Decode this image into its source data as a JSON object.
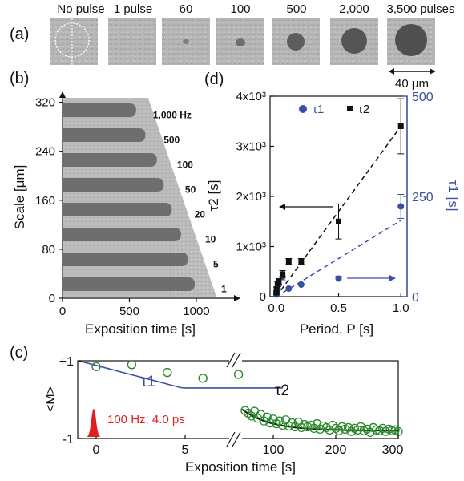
{
  "panels": {
    "a": {
      "label": "(a)",
      "pulse_labels": [
        "No pulse",
        "1 pulse",
        "60",
        "100",
        "500",
        "2,000",
        "3,500 pulses"
      ],
      "scalebar": "40 μm"
    },
    "b": {
      "label": "(b)"
    },
    "c": {
      "label": "(c)"
    },
    "d": {
      "label": "(d)"
    }
  },
  "colors": {
    "black": "#111111",
    "blue": "#3a4fa3",
    "green": "#2a8a2a",
    "red": "#e0201c",
    "bar_dark": "#6e6e6e",
    "bar_bg": "#b9b9b9"
  },
  "chart_data": [
    {
      "panel": "b",
      "type": "bar",
      "orientation": "horizontal",
      "xlabel": "Exposition time [s]",
      "ylabel": "Scale [μm]",
      "xlim": [
        0,
        1150
      ],
      "ylim": [
        0,
        330
      ],
      "x_ticks": [
        "0",
        "500",
        "1000"
      ],
      "y_ticks": [
        "0",
        "80",
        "160",
        "240",
        "320"
      ],
      "categories": [
        "1,000 Hz",
        "500",
        "100",
        "50",
        "20",
        "10",
        "5",
        "1"
      ],
      "values": [
        640,
        720,
        820,
        880,
        950,
        1030,
        1090,
        1150
      ]
    },
    {
      "panel": "d",
      "type": "scatter",
      "xlabel": "Period, P [s]",
      "ylabel_left": "τ2 [s]",
      "ylabel_right": "τ1 [s]",
      "xlim": [
        -0.05,
        1.05
      ],
      "ylim_left": [
        0,
        4000
      ],
      "ylim_right": [
        0,
        500
      ],
      "x_ticks": [
        "0.0",
        "0.5",
        "1.0"
      ],
      "y_ticks_left": [
        "0",
        "1x10³",
        "2x10³",
        "3x10³",
        "4x10³"
      ],
      "y_ticks_right": [
        "0",
        "250",
        "500"
      ],
      "legend": [
        "τ1",
        "τ2"
      ],
      "series": [
        {
          "name": "τ2",
          "axis": "left",
          "x": [
            0.001,
            0.002,
            0.01,
            0.02,
            0.05,
            0.1,
            0.2,
            0.5,
            1.0
          ],
          "y": [
            80,
            150,
            250,
            300,
            450,
            700,
            700,
            1500,
            3400
          ],
          "yerr": [
            30,
            40,
            50,
            60,
            70,
            60,
            60,
            350,
            550
          ]
        },
        {
          "name": "τ1",
          "axis": "right",
          "x": [
            0.001,
            0.002,
            0.01,
            0.02,
            0.05,
            0.1,
            0.2,
            0.5,
            1.0
          ],
          "y": [
            5,
            10,
            20,
            30,
            50,
            20,
            30,
            45,
            225
          ],
          "yerr": [
            0,
            0,
            0,
            0,
            8,
            0,
            0,
            6,
            30
          ]
        },
        {
          "name": "τ2 fit",
          "axis": "left",
          "x": [
            0.0,
            1.0
          ],
          "y": [
            0,
            3400
          ]
        },
        {
          "name": "τ1 fit",
          "axis": "right",
          "x": [
            0.0,
            1.0
          ],
          "y": [
            0,
            190
          ]
        }
      ]
    },
    {
      "panel": "c",
      "type": "line",
      "xlabel": "Exposition time [s]",
      "ylabel": "<M>",
      "y_ticks": [
        "+1",
        "-1"
      ],
      "ylim": [
        -1,
        1
      ],
      "left_x_ticks": [
        "0",
        "5"
      ],
      "right_x_ticks": [
        "100",
        "200",
        "300"
      ],
      "pulse_label": "100 Hz; 4.0 ps",
      "curve_labels": [
        "τ1",
        "τ2"
      ],
      "series": [
        {
          "name": "short-time data",
          "x": [
            0,
            2,
            4,
            6,
            8
          ],
          "y": [
            0.85,
            0.9,
            0.7,
            0.55,
            0.65
          ]
        },
        {
          "name": "long-time data",
          "x": [
            55,
            60,
            65,
            70,
            75,
            80,
            85,
            90,
            95,
            100,
            105,
            110,
            115,
            120,
            125,
            130,
            135,
            140,
            145,
            150,
            155,
            160,
            165,
            170,
            175,
            180,
            185,
            190,
            195,
            200,
            205,
            210,
            215,
            220,
            225,
            230,
            235,
            240,
            245,
            250,
            255,
            260,
            265,
            270,
            275,
            280,
            285,
            290,
            295,
            300
          ],
          "y": [
            -0.28,
            -0.35,
            -0.42,
            -0.3,
            -0.48,
            -0.38,
            -0.55,
            -0.45,
            -0.6,
            -0.5,
            -0.62,
            -0.55,
            -0.66,
            -0.52,
            -0.68,
            -0.6,
            -0.7,
            -0.58,
            -0.72,
            -0.64,
            -0.7,
            -0.66,
            -0.74,
            -0.62,
            -0.76,
            -0.68,
            -0.72,
            -0.78,
            -0.66,
            -0.74,
            -0.8,
            -0.7,
            -0.76,
            -0.72,
            -0.82,
            -0.74,
            -0.78,
            -0.7,
            -0.8,
            -0.76,
            -0.84,
            -0.72,
            -0.78,
            -0.8,
            -0.74,
            -0.82,
            -0.76,
            -0.8,
            -0.78,
            -0.82
          ]
        }
      ]
    }
  ]
}
